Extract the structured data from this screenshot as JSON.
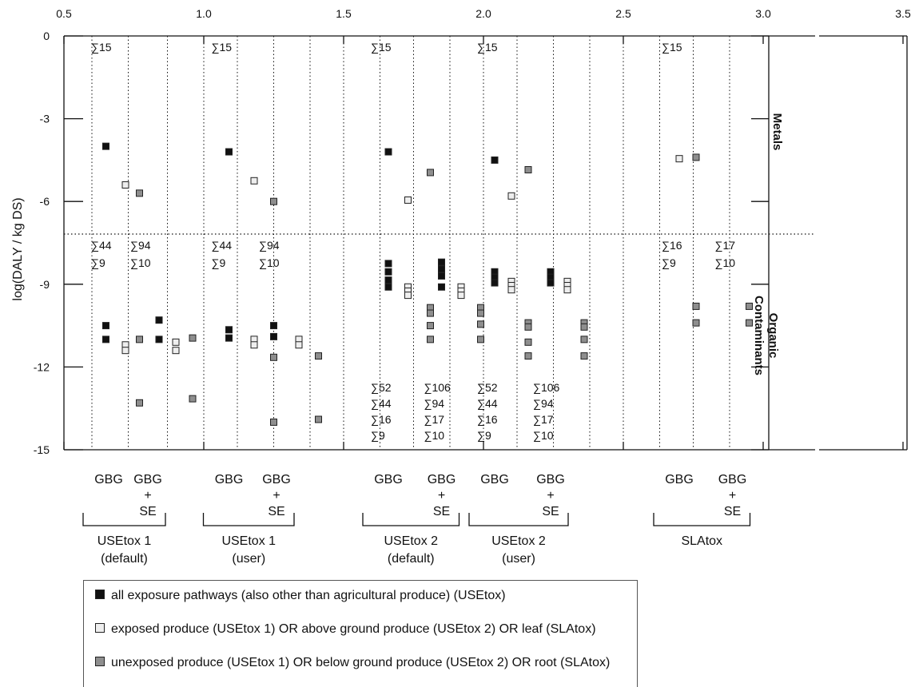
{
  "chart_data": {
    "type": "scatter",
    "ylabel": "log(DALY / kg DS)",
    "x_ticks": [
      "0.5",
      "1.0",
      "1.5",
      "2.0",
      "2.5",
      "3.0",
      "3.5"
    ],
    "y_ticks": [
      "0",
      "-3",
      "-6",
      "-9",
      "-12",
      "-15"
    ],
    "ylim": [
      -15,
      0
    ],
    "section_labels": [
      "Metals",
      "Organic\nContaminants"
    ],
    "columns": [
      {
        "label": "GBG",
        "metals_sum": "∑15",
        "organic_top": [
          "∑44",
          "∑9"
        ],
        "organic_bottom": []
      },
      {
        "label": "GBG\n+\nSE",
        "metals_sum": "",
        "organic_top": [
          "∑94",
          "∑10"
        ],
        "organic_bottom": []
      },
      {
        "label": "GBG",
        "metals_sum": "∑15",
        "organic_top": [
          "∑44",
          "∑9"
        ],
        "organic_bottom": []
      },
      {
        "label": "GBG\n+\nSE",
        "metals_sum": "",
        "organic_top": [
          "∑94",
          "∑10"
        ],
        "organic_bottom": []
      },
      {
        "label": "GBG",
        "metals_sum": "∑15",
        "organic_top": [],
        "organic_bottom": [
          "∑52",
          "∑44",
          "∑16",
          "∑9"
        ]
      },
      {
        "label": "GBG\n+\nSE",
        "metals_sum": "",
        "organic_top": [],
        "organic_bottom": [
          "∑106",
          "∑94",
          "∑17",
          "∑10"
        ]
      },
      {
        "label": "GBG",
        "metals_sum": "∑15",
        "organic_top": [],
        "organic_bottom": [
          "∑52",
          "∑44",
          "∑16",
          "∑9"
        ]
      },
      {
        "label": "GBG\n+\nSE",
        "metals_sum": "",
        "organic_top": [],
        "organic_bottom": [
          "∑106",
          "∑94",
          "∑17",
          "∑10"
        ]
      },
      {
        "label": "GBG",
        "metals_sum": "∑15",
        "organic_top": [
          "∑16",
          "∑9"
        ],
        "organic_bottom": []
      },
      {
        "label": "GBG\n+\nSE",
        "metals_sum": "",
        "organic_top": [
          "∑17",
          "∑10"
        ],
        "organic_bottom": []
      }
    ],
    "groups": [
      {
        "label": "USEtox 1\n(default)",
        "columns": [
          0,
          1
        ]
      },
      {
        "label": "USEtox 1\n(user)",
        "columns": [
          2,
          3
        ]
      },
      {
        "label": "USEtox 2\n(default)",
        "columns": [
          4,
          5
        ]
      },
      {
        "label": "USEtox 2\n(user)",
        "columns": [
          6,
          7
        ]
      },
      {
        "label": "SLAtox",
        "columns": [
          8,
          9
        ]
      }
    ],
    "series": [
      {
        "name": "all exposure pathways (also other than agricultural produce) (USEtox)",
        "color": "#111111",
        "points": [
          [
            0.65,
            -4.0
          ],
          [
            1.09,
            -4.2
          ],
          [
            1.66,
            -4.2
          ],
          [
            2.04,
            -4.5
          ],
          [
            0.65,
            -10.5
          ],
          [
            0.65,
            -11.0
          ],
          [
            0.84,
            -10.3
          ],
          [
            0.84,
            -11.0
          ],
          [
            1.09,
            -10.65
          ],
          [
            1.09,
            -10.95
          ],
          [
            1.25,
            -10.5
          ],
          [
            1.25,
            -10.9
          ],
          [
            1.66,
            -8.25
          ],
          [
            1.66,
            -8.55
          ],
          [
            1.66,
            -8.85
          ],
          [
            1.66,
            -9.1
          ],
          [
            1.85,
            -8.2
          ],
          [
            1.85,
            -8.45
          ],
          [
            1.85,
            -8.7
          ],
          [
            1.85,
            -9.1
          ],
          [
            2.04,
            -8.55
          ],
          [
            2.04,
            -8.75
          ],
          [
            2.04,
            -8.95
          ],
          [
            2.24,
            -8.55
          ],
          [
            2.24,
            -8.75
          ],
          [
            2.24,
            -8.95
          ]
        ]
      },
      {
        "name": "exposed produce (USEtox 1) OR above ground produce (USEtox 2) OR leaf (SLAtox)",
        "color": "#eeeeee",
        "points": [
          [
            0.72,
            -5.4
          ],
          [
            1.18,
            -5.25
          ],
          [
            1.73,
            -5.95
          ],
          [
            2.1,
            -5.8
          ],
          [
            2.7,
            -4.45
          ],
          [
            0.72,
            -11.2
          ],
          [
            0.72,
            -11.4
          ],
          [
            0.9,
            -11.1
          ],
          [
            0.9,
            -11.4
          ],
          [
            1.18,
            -11.0
          ],
          [
            1.18,
            -11.2
          ],
          [
            1.34,
            -11.0
          ],
          [
            1.34,
            -11.2
          ],
          [
            1.73,
            -9.1
          ],
          [
            1.73,
            -9.25
          ],
          [
            1.73,
            -9.4
          ],
          [
            1.92,
            -9.1
          ],
          [
            1.92,
            -9.25
          ],
          [
            1.92,
            -9.4
          ],
          [
            2.1,
            -8.9
          ],
          [
            2.1,
            -9.05
          ],
          [
            2.1,
            -9.2
          ],
          [
            2.3,
            -8.9
          ],
          [
            2.3,
            -9.05
          ],
          [
            2.3,
            -9.2
          ]
        ]
      },
      {
        "name": "unexposed produce (USEtox 1) OR below ground produce (USEtox 2) OR root (SLAtox)",
        "color": "#8e8e8e",
        "points": [
          [
            0.77,
            -5.7
          ],
          [
            1.25,
            -6.0
          ],
          [
            1.81,
            -4.95
          ],
          [
            2.16,
            -4.85
          ],
          [
            2.76,
            -4.4
          ],
          [
            0.77,
            -11.0
          ],
          [
            0.77,
            -13.3
          ],
          [
            0.96,
            -10.95
          ],
          [
            0.96,
            -13.15
          ],
          [
            1.25,
            -11.65
          ],
          [
            1.25,
            -14.0
          ],
          [
            1.41,
            -11.6
          ],
          [
            1.41,
            -13.9
          ],
          [
            1.81,
            -9.85
          ],
          [
            1.81,
            -10.05
          ],
          [
            1.81,
            -10.5
          ],
          [
            1.81,
            -11.0
          ],
          [
            1.99,
            -9.85
          ],
          [
            1.99,
            -10.05
          ],
          [
            1.99,
            -10.45
          ],
          [
            1.99,
            -11.0
          ],
          [
            2.16,
            -10.4
          ],
          [
            2.16,
            -10.55
          ],
          [
            2.16,
            -11.1
          ],
          [
            2.16,
            -11.6
          ],
          [
            2.36,
            -10.4
          ],
          [
            2.36,
            -10.55
          ],
          [
            2.36,
            -11.0
          ],
          [
            2.36,
            -11.6
          ],
          [
            2.76,
            -9.8
          ],
          [
            2.76,
            -10.4
          ],
          [
            2.95,
            -9.8
          ],
          [
            2.95,
            -10.4
          ]
        ]
      }
    ]
  }
}
